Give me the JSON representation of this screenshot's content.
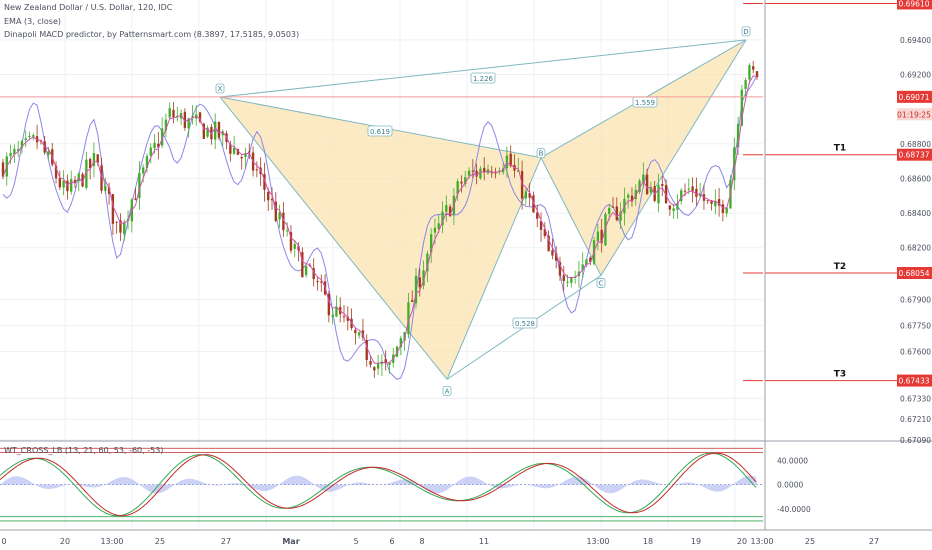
{
  "header": {
    "symbol_line": "New Zealand Dollar / U.S. Dollar, 120, IDC",
    "ema_line": "EMA (3, close)",
    "macd_line": "Dinapoli MACD predictor, by Patternsmart.com (8.3897, 17.5185, 9.0503)"
  },
  "colors": {
    "bull": "#3fae2a",
    "bear": "#a33a1c",
    "ema": "#d64fb5",
    "bands": "#8d86e6",
    "pattern_fill": "#fbe3b1",
    "pattern_line": "#7fb8c2",
    "level_line": "#e53935",
    "price_line": "#ef9a9a",
    "osc_green": "#34a853",
    "osc_red": "#c62828",
    "osc_hist": "#aab4f0"
  },
  "chart_data": {
    "type": "candlestick",
    "ylim": [
      0.6709,
      0.6963
    ],
    "price_axis_labels": [
      "0.69400",
      "0.69200",
      "0.68800",
      "0.68600",
      "0.68400",
      "0.68200",
      "0.67900",
      "0.67750",
      "0.67600",
      "0.67330",
      "0.67210",
      "0.67090"
    ],
    "price_tags": [
      {
        "label": "0.69610",
        "value": 0.6961,
        "kind": "level"
      },
      {
        "label": "0.69071",
        "value": 0.69071,
        "kind": "current"
      },
      {
        "label": "01:19:25",
        "value": 0.6897,
        "kind": "countdown"
      },
      {
        "label": "0.68737",
        "value": 0.68737,
        "kind": "level"
      },
      {
        "label": "0.68054",
        "value": 0.68054,
        "kind": "level"
      },
      {
        "label": "0.67433",
        "value": 0.67433,
        "kind": "level"
      }
    ],
    "levels": [
      {
        "name": "SL",
        "value": 0.6961
      },
      {
        "name": "T1",
        "value": 0.68737
      },
      {
        "name": "T2",
        "value": 0.68054
      },
      {
        "name": "T3",
        "value": 0.67433
      }
    ],
    "current_price": 0.69071,
    "time_labels": [
      "0",
      "20",
      "13:00",
      "25",
      "27",
      "Mar",
      "5",
      "6",
      "8",
      "11",
      "13:00",
      "18",
      "19",
      "20",
      "13:00",
      "25",
      "27"
    ],
    "pattern": {
      "points": [
        {
          "name": "X",
          "value": 0.6907
        },
        {
          "name": "A",
          "value": 0.6744
        },
        {
          "name": "B",
          "value": 0.6872
        },
        {
          "name": "C",
          "value": 0.6804
        },
        {
          "name": "D",
          "value": 0.694
        }
      ],
      "ratios": [
        "1.226",
        "0.619",
        "1.559",
        "0.528"
      ]
    },
    "oscillator": {
      "title": "WT_CROSS_LB (13, 21, 60, 53, -60, -53)",
      "axis_labels": [
        "40.0000",
        "0.0000",
        "-40.0000"
      ],
      "levels": [
        60,
        53,
        -53,
        -60
      ],
      "ylim": [
        -75,
        72
      ]
    }
  }
}
